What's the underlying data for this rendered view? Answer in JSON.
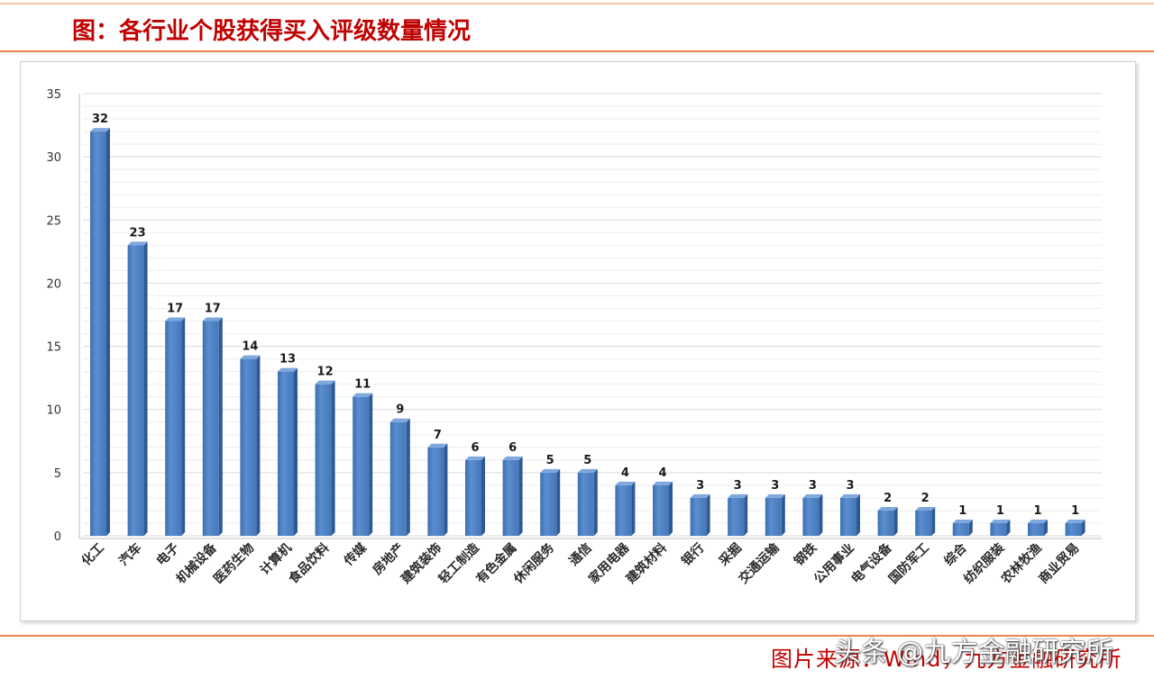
{
  "source": "图片来源：Wind，九方金融研究所",
  "watermark": "头条 @九方金融研究所",
  "colors": {
    "title": "#c00000",
    "rule": "#e8884f",
    "bar": "#4a7cc0",
    "bar_side": "#2d5a94",
    "bar_top": "#7ea8dd",
    "grid_major": "#d9d9d9",
    "grid_minor": "#eeeeee",
    "axis": "#bfbfbf"
  },
  "chart_data": {
    "type": "bar",
    "title": "图：各行业个股获得买入评级数量情况",
    "xlabel": "",
    "ylabel": "",
    "categories": [
      "化工",
      "汽车",
      "电子",
      "机械设备",
      "医药生物",
      "计算机",
      "食品饮料",
      "传媒",
      "房地产",
      "建筑装饰",
      "轻工制造",
      "有色金属",
      "休闲服务",
      "通信",
      "家用电器",
      "建筑材料",
      "银行",
      "采掘",
      "交通运输",
      "钢铁",
      "公用事业",
      "电气设备",
      "国防军工",
      "综合",
      "纺织服装",
      "农林牧渔",
      "商业贸易"
    ],
    "values": [
      32,
      23,
      17,
      17,
      14,
      13,
      12,
      11,
      9,
      7,
      6,
      6,
      5,
      5,
      4,
      4,
      3,
      3,
      3,
      3,
      3,
      2,
      2,
      1,
      1,
      1,
      1
    ],
    "ylim": [
      0,
      35
    ],
    "yticks": [
      0,
      5,
      10,
      15,
      20,
      25,
      30,
      35
    ],
    "grid": true,
    "legend": "none",
    "data_labels": true
  }
}
